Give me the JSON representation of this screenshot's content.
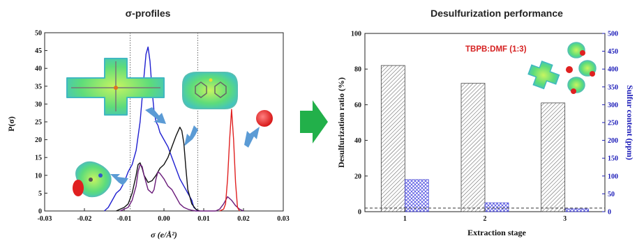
{
  "chart_data": [
    {
      "type": "line",
      "title": "σ-profiles",
      "xlabel": "σ (e/Å²)",
      "ylabel": "P(σ)",
      "xlim": [
        -0.03,
        0.03
      ],
      "ylim": [
        0,
        50
      ],
      "xticks": [
        "-0.03",
        "-0.02",
        "-0.01",
        "0.00",
        "0.01",
        "0.02",
        "0.03"
      ],
      "yticks": [
        "0",
        "5",
        "10",
        "15",
        "20",
        "25",
        "30",
        "35",
        "40",
        "45",
        "50"
      ],
      "reference_lines_x": [
        -0.0085,
        0.0085
      ],
      "series": [
        {
          "color": "#1f1fd0",
          "x": [
            -0.015,
            -0.014,
            -0.013,
            -0.012,
            -0.011,
            -0.01,
            -0.009,
            -0.008,
            -0.007,
            -0.006,
            -0.005,
            -0.0045,
            -0.004,
            -0.0035,
            -0.003,
            -0.0025,
            -0.002,
            -0.0015,
            -0.001,
            0.0,
            0.001,
            0.002,
            0.003,
            0.004,
            0.005,
            0.006,
            0.007,
            0.0075,
            0.0085
          ],
          "y": [
            0,
            1,
            3,
            5,
            6,
            8,
            11,
            13,
            17,
            25,
            38,
            44,
            46,
            42,
            34,
            28,
            25,
            24,
            22,
            20,
            18,
            15,
            12,
            9,
            7,
            5,
            3,
            1,
            0
          ]
        },
        {
          "color": "#111111",
          "x": [
            -0.012,
            -0.011,
            -0.01,
            -0.009,
            -0.008,
            -0.007,
            -0.0065,
            -0.006,
            -0.0055,
            -0.005,
            -0.004,
            -0.003,
            -0.002,
            -0.001,
            0.0,
            0.001,
            0.002,
            0.003,
            0.004,
            0.0045,
            0.005,
            0.0055,
            0.006,
            0.007,
            0.008,
            0.009
          ],
          "y": [
            0,
            0.5,
            1,
            2,
            5,
            10,
            13,
            13.5,
            12,
            10,
            8,
            8.5,
            10,
            12,
            13,
            15,
            18,
            21,
            23.5,
            22.5,
            19,
            12,
            6,
            2,
            0.5,
            0
          ]
        },
        {
          "color": "#6a1b7a",
          "x": [
            -0.011,
            -0.01,
            -0.009,
            -0.008,
            -0.007,
            -0.0065,
            -0.006,
            -0.0055,
            -0.005,
            -0.004,
            -0.003,
            -0.0025,
            -0.002,
            -0.0015,
            -0.001,
            0.0,
            0.001,
            0.002,
            0.003,
            0.004,
            0.005,
            0.006,
            0.007,
            0.008,
            0.009,
            0.01,
            0.011,
            0.012,
            0.013,
            0.014,
            0.015,
            0.016,
            0.017,
            0.018,
            0.019,
            0.02
          ],
          "y": [
            0,
            0.5,
            1,
            3,
            7,
            11,
            13,
            12.5,
            10,
            6,
            5,
            6,
            9,
            11,
            10.5,
            9,
            7,
            6,
            4,
            2,
            1,
            0.5,
            0.2,
            0,
            0,
            0,
            0,
            0,
            0,
            0.5,
            2,
            4,
            3,
            1.5,
            0.5,
            0
          ]
        },
        {
          "color": "#e02020",
          "x": [
            0.014,
            0.015,
            0.0155,
            0.016,
            0.0165,
            0.017,
            0.0175,
            0.018,
            0.0185,
            0.019
          ],
          "y": [
            0,
            0.5,
            2,
            9,
            20,
            28.5,
            20,
            8,
            1,
            0
          ]
        }
      ]
    },
    {
      "type": "bar",
      "title": "Desulfurization performance",
      "xlabel": "Extraction stage",
      "ylabel": "Desulfurization ratio (%)",
      "y2label": "Sulfur content (ppm)",
      "categories": [
        "1",
        "2",
        "3"
      ],
      "ylim": [
        0,
        100
      ],
      "y2lim": [
        0,
        500
      ],
      "yticks": [
        "0",
        "20",
        "40",
        "60",
        "80",
        "100"
      ],
      "y2ticks": [
        "0",
        "50",
        "100",
        "150",
        "200",
        "250",
        "300",
        "350",
        "400",
        "450",
        "500"
      ],
      "series": [
        {
          "axis": "left",
          "values": [
            82,
            72,
            61
          ]
        },
        {
          "axis": "right",
          "values": [
            90,
            25,
            8
          ]
        }
      ],
      "reference_line_y": 2,
      "annotation": "TBPB:DMF (1:3)"
    }
  ]
}
